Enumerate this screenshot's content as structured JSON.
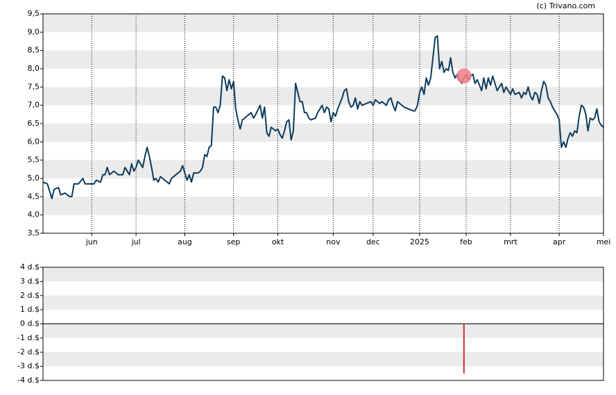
{
  "source": "(c) Trivano.com",
  "chart_data": [
    {
      "type": "line",
      "grid": true,
      "color": "#0d3a5c",
      "marker_color": "#f07f86",
      "xlim": [
        0,
        253
      ],
      "ylim": [
        3.5,
        9.5
      ],
      "xticks": [
        {
          "value": 22,
          "label": "jun"
        },
        {
          "value": 42,
          "label": "jul"
        },
        {
          "value": 64,
          "label": "aug"
        },
        {
          "value": 86,
          "label": "sep"
        },
        {
          "value": 106,
          "label": "okt"
        },
        {
          "value": 131,
          "label": "nov"
        },
        {
          "value": 149,
          "label": "dec"
        },
        {
          "value": 170,
          "label": "2025"
        },
        {
          "value": 191,
          "label": "feb"
        },
        {
          "value": 211,
          "label": "mrt"
        },
        {
          "value": 233,
          "label": "apr"
        },
        {
          "value": 253,
          "label": "mei"
        }
      ],
      "yticks": [
        {
          "value": 3.5,
          "label": "3,5"
        },
        {
          "value": 4,
          "label": "4,0"
        },
        {
          "value": 4.5,
          "label": "4,5"
        },
        {
          "value": 5,
          "label": "5,0"
        },
        {
          "value": 5.5,
          "label": "5,5"
        },
        {
          "value": 6,
          "label": "6,0"
        },
        {
          "value": 6.5,
          "label": "6,5"
        },
        {
          "value": 7,
          "label": "7,0"
        },
        {
          "value": 7.5,
          "label": "7,5"
        },
        {
          "value": 8,
          "label": "8,0"
        },
        {
          "value": 8.5,
          "label": "8,5"
        },
        {
          "value": 9,
          "label": "9,0"
        },
        {
          "value": 9.5,
          "label": "9,5"
        }
      ],
      "x": [
        0,
        2,
        4,
        5,
        7,
        8,
        10,
        12,
        13,
        14,
        16,
        18,
        19,
        21,
        23,
        24,
        26,
        27,
        28,
        29,
        30,
        32,
        34,
        36,
        37,
        39,
        40,
        41,
        42,
        43,
        45,
        46,
        47,
        48,
        49,
        50,
        51,
        52,
        53,
        55,
        57,
        58,
        60,
        62,
        63,
        64,
        65,
        66,
        67,
        68,
        70,
        71,
        72,
        73,
        74,
        75,
        76,
        77,
        78,
        79,
        80,
        81,
        82,
        83,
        84,
        85,
        86,
        87,
        88,
        89,
        90,
        92,
        94,
        95,
        96,
        98,
        99,
        100,
        101,
        102,
        103,
        104,
        105,
        106,
        107,
        108,
        109,
        110,
        111,
        112,
        113,
        114,
        115,
        116,
        117,
        118,
        119,
        120,
        121,
        123,
        124,
        125,
        126,
        127,
        128,
        129,
        130,
        131,
        132,
        133,
        135,
        136,
        137,
        138,
        139,
        140,
        141,
        142,
        143,
        144,
        146,
        148,
        149,
        150,
        152,
        153,
        155,
        156,
        157,
        158,
        159,
        160,
        161,
        163,
        165,
        167,
        168,
        169,
        170,
        171,
        172,
        173,
        174,
        175,
        176,
        177,
        178,
        179,
        180,
        181,
        182,
        183,
        184,
        185,
        186,
        187,
        188,
        189,
        190,
        191,
        192,
        193,
        194,
        195,
        196,
        197,
        198,
        199,
        200,
        201,
        202,
        203,
        205,
        206,
        207,
        208,
        209,
        210,
        211,
        212,
        213,
        215,
        216,
        217,
        218,
        219,
        220,
        221,
        222,
        223,
        224,
        225,
        226,
        227,
        228,
        229,
        230,
        232,
        233,
        234,
        235,
        236,
        237,
        238,
        239,
        240,
        241,
        242,
        243,
        244,
        245,
        246,
        247,
        248,
        249,
        250,
        251,
        252,
        253
      ],
      "values": [
        4.9,
        4.85,
        4.45,
        4.7,
        4.75,
        4.55,
        4.6,
        4.5,
        4.5,
        4.85,
        4.85,
        5.0,
        4.85,
        4.85,
        4.85,
        4.95,
        4.9,
        5.1,
        5.1,
        5.3,
        5.1,
        5.2,
        5.1,
        5.1,
        5.3,
        5.1,
        5.4,
        5.2,
        5.3,
        5.5,
        5.3,
        5.6,
        5.85,
        5.6,
        5.3,
        4.95,
        5.0,
        4.9,
        5.05,
        4.95,
        4.85,
        5.0,
        5.1,
        5.2,
        5.35,
        5.15,
        4.95,
        5.1,
        4.9,
        5.15,
        5.15,
        5.2,
        5.3,
        5.65,
        5.6,
        5.85,
        5.9,
        6.95,
        6.95,
        6.8,
        7.0,
        7.8,
        7.75,
        7.4,
        7.7,
        7.45,
        7.65,
        6.9,
        6.6,
        6.35,
        6.6,
        6.7,
        6.8,
        6.65,
        6.75,
        7.0,
        6.65,
        6.95,
        6.25,
        6.15,
        6.4,
        6.35,
        6.3,
        6.35,
        6.2,
        6.1,
        6.3,
        6.55,
        6.6,
        6.05,
        6.3,
        7.6,
        7.35,
        7.1,
        7.1,
        6.8,
        6.8,
        6.65,
        6.6,
        6.65,
        6.8,
        6.9,
        7.0,
        6.8,
        6.95,
        6.9,
        6.55,
        6.8,
        6.7,
        6.9,
        7.2,
        7.4,
        7.45,
        7.1,
        6.95,
        7.0,
        7.2,
        6.9,
        7.1,
        7.0,
        7.05,
        7.1,
        7.0,
        7.15,
        7.05,
        7.1,
        7.0,
        7.15,
        7.2,
        7.0,
        6.85,
        7.1,
        7.05,
        6.95,
        6.9,
        6.85,
        6.85,
        7.0,
        7.35,
        7.5,
        7.3,
        7.75,
        7.55,
        7.75,
        8.3,
        8.85,
        8.9,
        8.0,
        8.2,
        7.9,
        8.0,
        7.95,
        8.3,
        7.9,
        7.75,
        7.85,
        7.7,
        7.6,
        7.75,
        7.85,
        7.7,
        7.8,
        7.85,
        7.6,
        7.7,
        7.55,
        7.4,
        7.75,
        7.45,
        7.75,
        7.55,
        7.8,
        7.4,
        7.5,
        7.6,
        7.35,
        7.5,
        7.4,
        7.3,
        7.45,
        7.3,
        7.35,
        7.2,
        7.35,
        7.3,
        7.5,
        7.25,
        7.15,
        7.35,
        7.3,
        7.05,
        7.4,
        7.65,
        7.55,
        7.2,
        7.1,
        6.95,
        6.75,
        6.6,
        5.85,
        6.0,
        5.85,
        6.1,
        6.25,
        6.15,
        6.3,
        6.25,
        6.7,
        7.0,
        6.95,
        6.75,
        6.3,
        6.65,
        6.6,
        6.65,
        6.9,
        6.55,
        6.45,
        6.4
      ],
      "markers": [
        {
          "x": 190,
          "y": 7.8
        }
      ]
    },
    {
      "type": "bar",
      "color": "#d62a2a",
      "xlim": [
        0,
        253
      ],
      "ylim": [
        -4,
        4
      ],
      "yticks": [
        {
          "value": -4,
          "label": "-4 d.$"
        },
        {
          "value": -3,
          "label": "-3 d.$"
        },
        {
          "value": -2,
          "label": "-2 d.$"
        },
        {
          "value": -1,
          "label": "-1 d.$"
        },
        {
          "value": 0,
          "label": "0 d.$"
        },
        {
          "value": 1,
          "label": "1 d.$"
        },
        {
          "value": 2,
          "label": "2 d.$"
        },
        {
          "value": 3,
          "label": "3 d.$"
        },
        {
          "value": 4,
          "label": "4 d.$"
        }
      ],
      "x": [
        190
      ],
      "values": [
        -3.5
      ]
    }
  ]
}
